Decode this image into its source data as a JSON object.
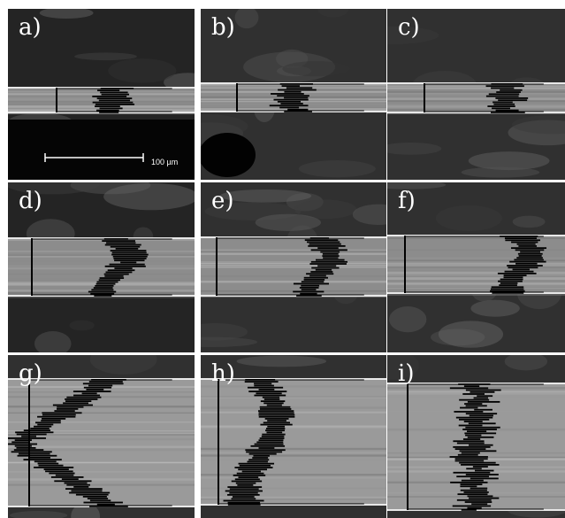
{
  "panels": [
    {
      "id": "a",
      "label": "a)"
    },
    {
      "id": "b",
      "label": "b)"
    },
    {
      "id": "c",
      "label": "c)"
    },
    {
      "id": "d",
      "label": "d)"
    },
    {
      "id": "e",
      "label": "e)"
    },
    {
      "id": "f",
      "label": "f)"
    },
    {
      "id": "g",
      "label": "g)"
    },
    {
      "id": "h",
      "label": "h)"
    },
    {
      "id": "i",
      "label": "i)"
    }
  ],
  "scale_bar": {
    "text": "100 µm"
  },
  "colors": {
    "profile": "#000000",
    "film": "#8f8f8f",
    "background": "#2a2a2a"
  }
}
